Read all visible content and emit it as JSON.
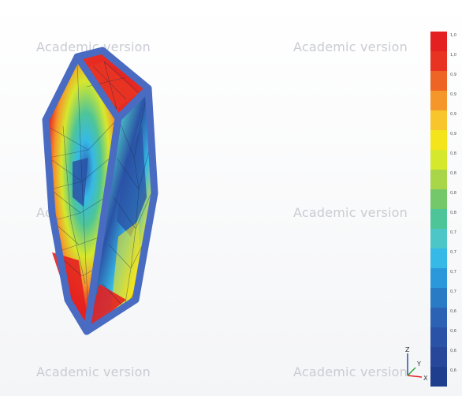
{
  "viewport": {
    "watermark_text": "Academic version",
    "background": "#fbfbfc"
  },
  "legend": {
    "ticks": [
      "1,0",
      "1,0",
      "0,9",
      "0,9",
      "0,9",
      "0,9",
      "0,8",
      "0,8",
      "0,8",
      "0,8",
      "0,7",
      "0,7",
      "0,7",
      "0,7",
      "0,6",
      "0,6",
      "0,6",
      "0,6"
    ],
    "colors": [
      "#e42020",
      "#e83323",
      "#ee6424",
      "#f5962a",
      "#f8c62c",
      "#f3e41c",
      "#d6e82c",
      "#a9d648",
      "#74c86a",
      "#4ec598",
      "#4cc6c6",
      "#36b9e6",
      "#2c98dc",
      "#2a7bc6",
      "#2c62b4",
      "#2a52a6",
      "#26479a",
      "#203e8e"
    ]
  },
  "axes": {
    "z": "Z",
    "y": "Y",
    "x": "X"
  },
  "model": {
    "frame_color": "#4a6bc2"
  }
}
